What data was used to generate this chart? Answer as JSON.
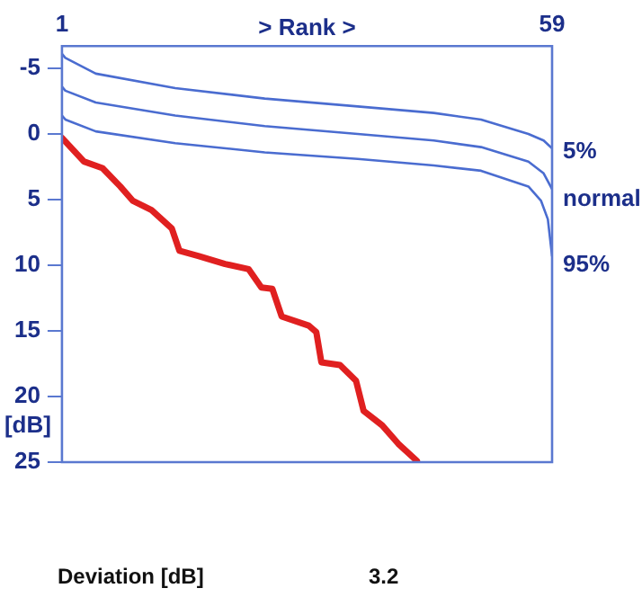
{
  "chart_data": {
    "type": "line",
    "xlabel": "> Rank >",
    "ylabel": "[dB]",
    "xlim": [
      1,
      59
    ],
    "xticks": [
      1,
      59
    ],
    "ylim": [
      25,
      -6.7
    ],
    "yticks": [
      -5,
      0,
      5,
      10,
      15,
      20,
      25
    ],
    "grid": false,
    "legend": false,
    "marker": "none",
    "line_style": "solid",
    "annotations": [
      "Deviation [dB]",
      "3.2"
    ],
    "series": [
      {
        "name": "5%",
        "color": "#4a6cd0",
        "x": [
          1,
          1.4,
          5,
          14.4,
          25,
          36,
          45,
          50.6,
          56.2,
          58,
          59
        ],
        "values": [
          -6.1,
          -5.8,
          -4.6,
          -3.5,
          -2.7,
          -2.1,
          -1.6,
          -1.1,
          0,
          0.5,
          1.1
        ]
      },
      {
        "name": "normal",
        "color": "#4a6cd0",
        "x": [
          1,
          1.4,
          5,
          14.4,
          25,
          36,
          45,
          50.6,
          56.2,
          58,
          59
        ],
        "values": [
          -3.6,
          -3.3,
          -2.4,
          -1.4,
          -0.6,
          0,
          0.5,
          1,
          2.1,
          3,
          4.2
        ]
      },
      {
        "name": "95%",
        "color": "#4a6cd0",
        "x": [
          1,
          1.4,
          5,
          14.4,
          25,
          36,
          45,
          50.6,
          56.2,
          57.7,
          58.5,
          59
        ],
        "values": [
          -1.4,
          -1.1,
          -0.2,
          0.7,
          1.4,
          1.9,
          2.4,
          2.8,
          4,
          5.1,
          6.5,
          9.3
        ]
      },
      {
        "color": "#e02020",
        "x": [
          1,
          3.6,
          5.8,
          7.9,
          9.4,
          11.6,
          14,
          14.9,
          17.2,
          20.3,
          23.1,
          24.6,
          25.9,
          27,
          30.2,
          31.1,
          31.7,
          33.9,
          35.8,
          36.7,
          38.9,
          40.8,
          43
        ],
        "values": [
          0.3,
          2.1,
          2.6,
          4,
          5.1,
          5.8,
          7.2,
          8.9,
          9.3,
          9.9,
          10.3,
          11.7,
          11.8,
          13.9,
          14.6,
          15.1,
          17.4,
          17.6,
          18.8,
          21.1,
          22.2,
          23.6,
          24.9
        ]
      }
    ]
  }
}
